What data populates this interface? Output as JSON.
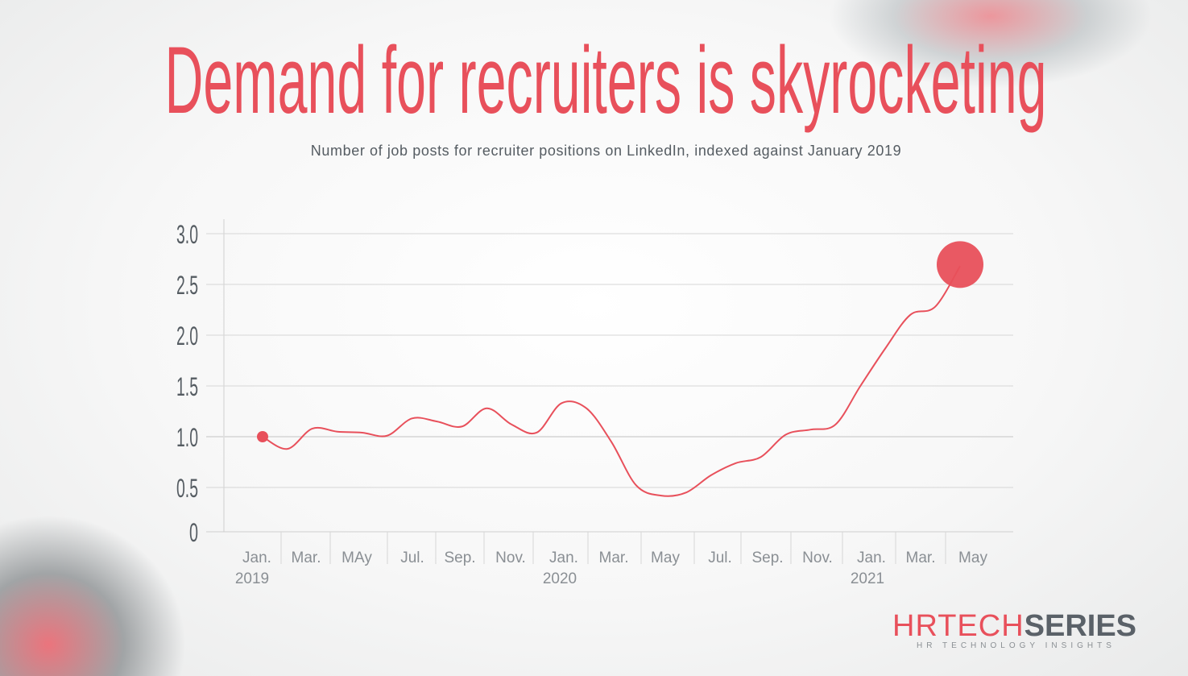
{
  "title": "Demand for recruiters is skyrocketing",
  "subtitle": "Number of job posts for recruiter positions on LinkedIn, indexed against January 2019",
  "logo": {
    "part1": "HRTECH",
    "part2": "SERIES",
    "tagline": "HR TECHNOLOGY INSIGHTS"
  },
  "chart_data": {
    "type": "line",
    "title": "Demand for recruiters is skyrocketing",
    "subtitle": "Number of job posts for recruiter positions on LinkedIn, indexed against January 2019",
    "xlabel": "",
    "ylabel": "",
    "ylim": [
      0,
      3.0
    ],
    "y_ticks": [
      "0",
      "0.5",
      "1.0",
      "1.5",
      "2.0",
      "2.5",
      "3.0"
    ],
    "x_tick_labels": [
      "Jan.",
      "Mar.",
      "MAy",
      "Jul.",
      "Sep.",
      "Nov.",
      "Jan.",
      "Mar.",
      "May",
      "Jul.",
      "Sep.",
      "Nov.",
      "Jan.",
      "Mar.",
      "May"
    ],
    "x_year_labels": [
      "2019",
      "2020",
      "2021"
    ],
    "grid": true,
    "line_color": "#e8505b",
    "x": [
      "2019-01",
      "2019-02",
      "2019-03",
      "2019-04",
      "2019-05",
      "2019-06",
      "2019-07",
      "2019-08",
      "2019-09",
      "2019-10",
      "2019-11",
      "2019-12",
      "2020-01",
      "2020-02",
      "2020-03",
      "2020-04",
      "2020-05",
      "2020-06",
      "2020-07",
      "2020-08",
      "2020-09",
      "2020-10",
      "2020-11",
      "2020-12",
      "2021-01",
      "2021-02",
      "2021-03",
      "2021-04",
      "2021-05"
    ],
    "values": [
      1.0,
      0.88,
      1.08,
      1.05,
      1.04,
      1.01,
      1.18,
      1.15,
      1.1,
      1.28,
      1.12,
      1.04,
      1.33,
      1.28,
      0.95,
      0.52,
      0.42,
      0.45,
      0.62,
      0.74,
      0.8,
      1.02,
      1.07,
      1.12,
      1.5,
      1.87,
      2.2,
      2.28,
      2.68
    ]
  }
}
